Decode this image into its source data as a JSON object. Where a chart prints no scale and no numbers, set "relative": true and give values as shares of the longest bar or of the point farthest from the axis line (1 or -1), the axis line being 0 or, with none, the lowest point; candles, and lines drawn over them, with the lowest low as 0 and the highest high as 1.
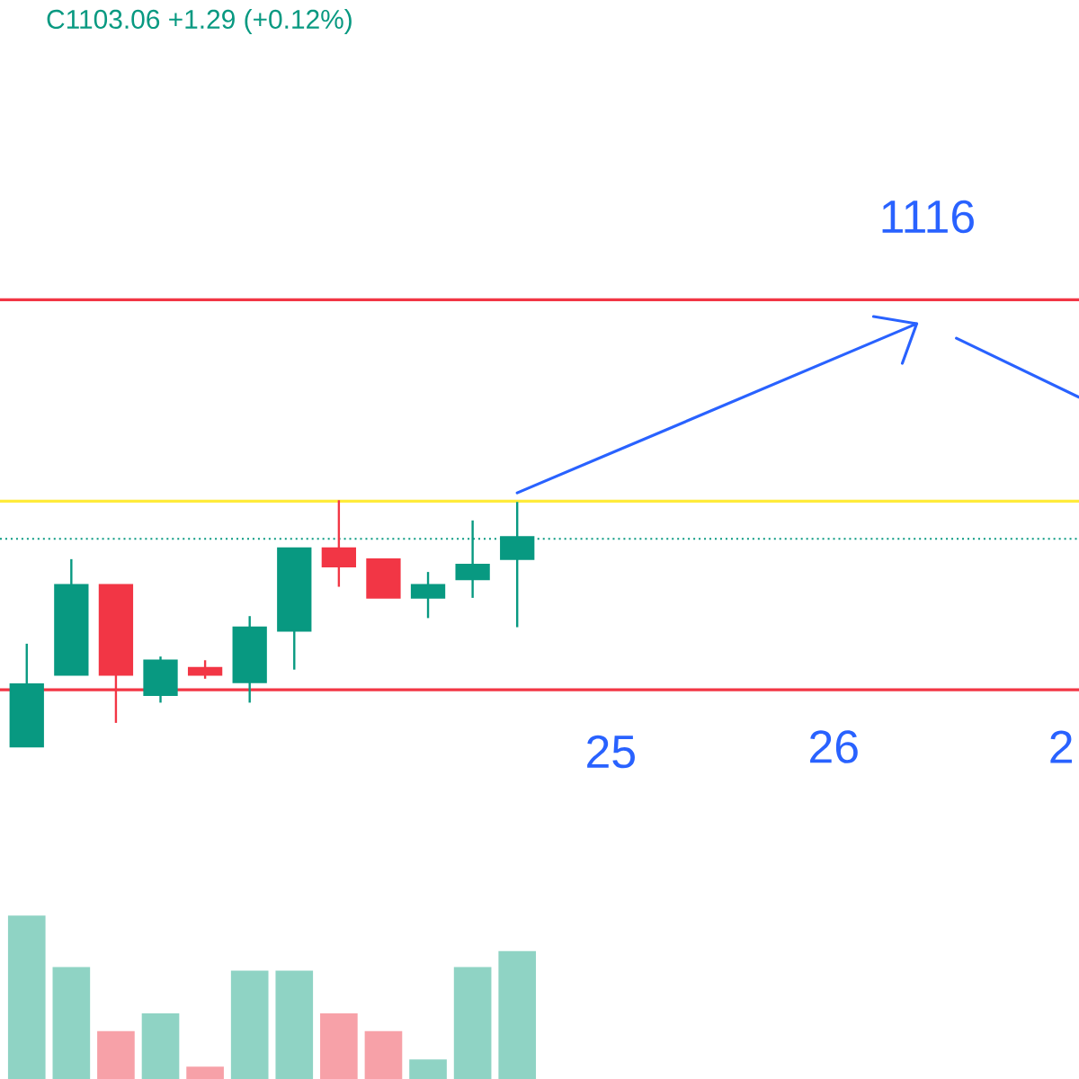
{
  "chart_data": [
    {
      "type": "candlestick",
      "title": "C1103.06  +1.29 (+0.12%)",
      "relative": true,
      "categories": [
        null,
        null,
        null,
        null,
        null,
        null,
        null,
        null,
        null,
        null,
        null,
        null
      ],
      "ohlc": [
        [
          0,
          0.418,
          0,
          0.254
        ],
        [
          0.291,
          0.761,
          0.291,
          0.657
        ],
        [
          0.657,
          0.657,
          0.097,
          0.291
        ],
        [
          0.209,
          0.366,
          0.179,
          0.351
        ],
        [
          0.321,
          0.351,
          0.276,
          0.291
        ],
        [
          0.261,
          0.53,
          0.179,
          0.485
        ],
        [
          0.47,
          0.806,
          0.313,
          0.806
        ],
        [
          0.806,
          1,
          0.649,
          0.731
        ],
        [
          0.761,
          0.761,
          0.604,
          0.604
        ],
        [
          0.604,
          0.709,
          0.522,
          0.657
        ],
        [
          0.679,
          0.918,
          0.604,
          0.739
        ],
        [
          0.761,
          0.993,
          0.485,
          0.851
        ]
      ],
      "colors": [
        "#089981",
        "#089981",
        "#f23645",
        "#089981",
        "#f23645",
        "#089981",
        "#089981",
        "#f23645",
        "#f23645",
        "#089981",
        "#089981",
        "#089981"
      ],
      "ref_lines": [
        {
          "axis": "y",
          "value": 1.813,
          "color": "#f23645"
        },
        {
          "axis": "y",
          "value": 0.231,
          "color": "#f23645"
        },
        {
          "axis": "y",
          "value": 0.843,
          "color": "#089981",
          "line_style": "dotted"
        },
        {
          "axis": "y",
          "value": 0.996,
          "color": "#ffeb3b"
        }
      ],
      "annotations": [
        "1116",
        "25",
        "26",
        "2"
      ]
    },
    {
      "type": "bar",
      "relative": true,
      "categories": [
        null,
        null,
        null,
        null,
        null,
        null,
        null,
        null,
        null,
        null,
        null,
        null
      ],
      "values": [
        1,
        0.685,
        0.293,
        0.402,
        0.076,
        0.663,
        0.663,
        0.402,
        0.293,
        0.12,
        0.685,
        0.783
      ],
      "colors": [
        "#8fd3c4",
        "#8fd3c4",
        "#f7a1a8",
        "#8fd3c4",
        "#f7a1a8",
        "#8fd3c4",
        "#8fd3c4",
        "#f7a1a8",
        "#f7a1a8",
        "#8fd3c4",
        "#8fd3c4",
        "#8fd3c4"
      ]
    }
  ]
}
